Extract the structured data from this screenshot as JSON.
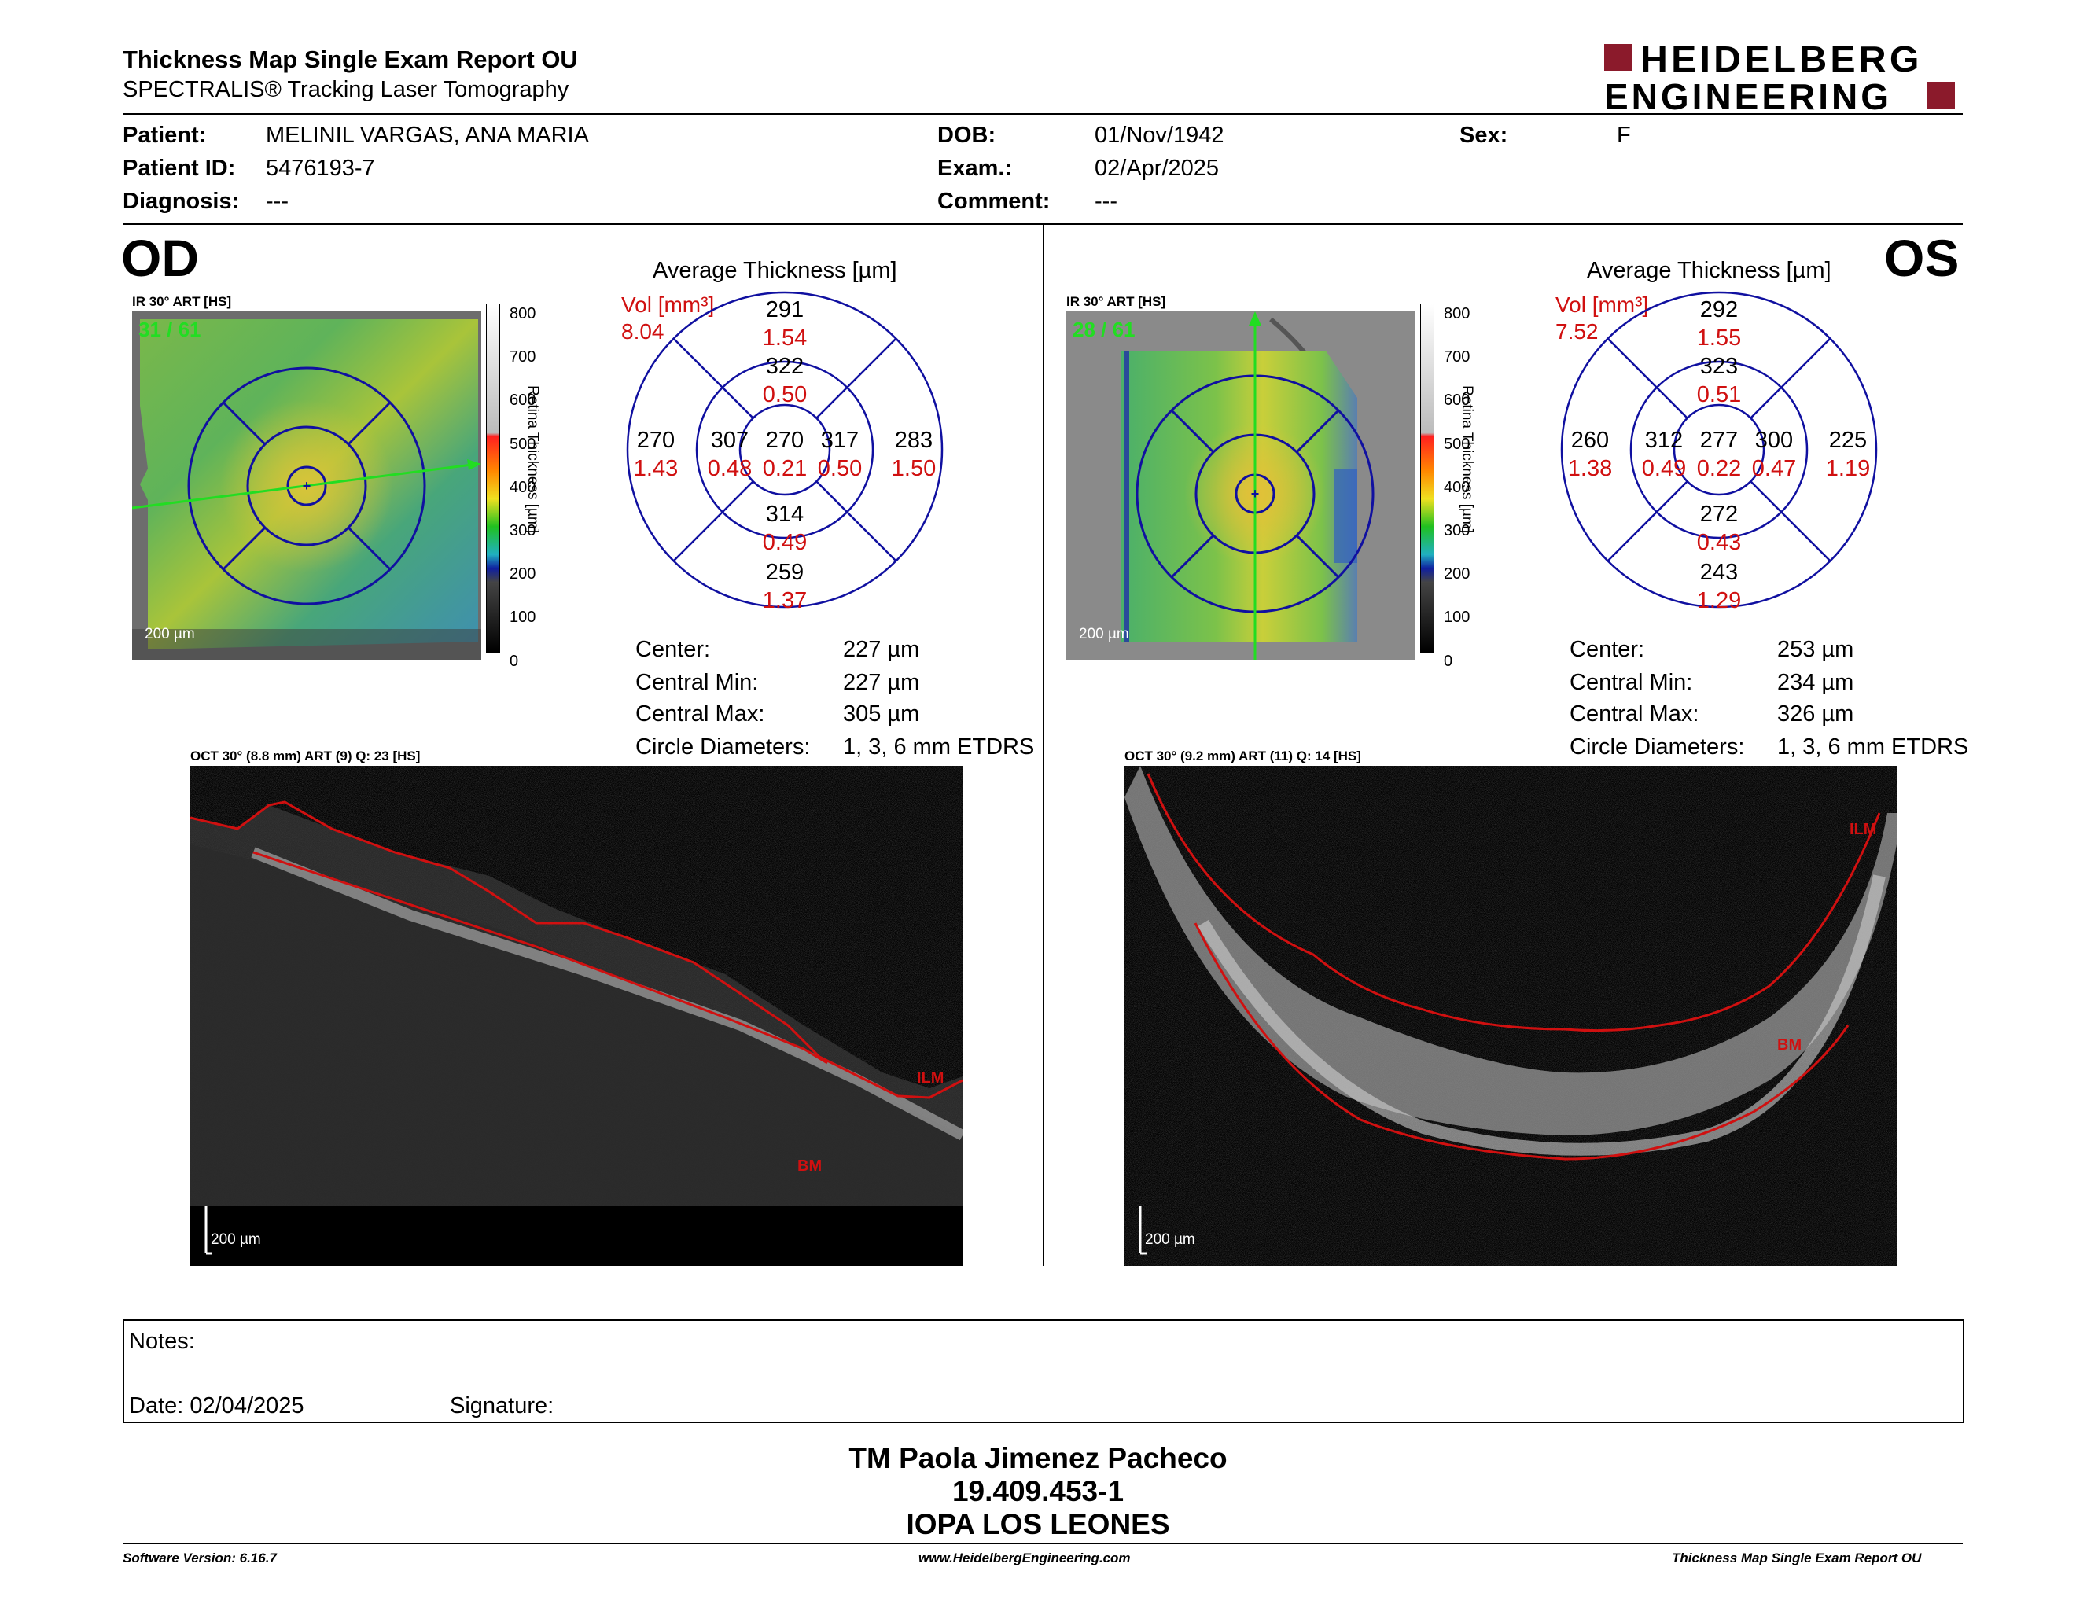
{
  "header": {
    "title": "Thickness Map Single Exam Report OU",
    "subtitle": "SPECTRALIS® Tracking Laser Tomography",
    "logo_line1": "HEIDELBERG",
    "logo_line2": "ENGINEERING",
    "brand_color": "#8b1a2b"
  },
  "patient": {
    "patient_label": "Patient:",
    "patient_value": "MELINIL VARGAS, ANA MARIA",
    "id_label": "Patient ID:",
    "id_value": "5476193-7",
    "diag_label": "Diagnosis:",
    "diag_value": "---",
    "dob_label": "DOB:",
    "dob_value": "01/Nov/1942",
    "exam_label": "Exam.:",
    "exam_value": "02/Apr/2025",
    "comment_label": "Comment:",
    "comment_value": "---",
    "sex_label": "Sex:",
    "sex_value": "F"
  },
  "od": {
    "eye": "OD",
    "ir_label": "IR 30° ART [HS]",
    "frame": "31 / 61",
    "scale": "200 µm",
    "avg_title": "Average Thickness [µm]",
    "vol_label": "Vol [mm³]",
    "vol_value": "8.04",
    "grid": {
      "center": {
        "t": "270",
        "v": "0.21"
      },
      "inner_sup": {
        "t": "322",
        "v": "0.50"
      },
      "inner_inf": {
        "t": "314",
        "v": "0.49"
      },
      "inner_temp": {
        "t": "307",
        "v": "0.48"
      },
      "inner_nasal": {
        "t": "317",
        "v": "0.50"
      },
      "outer_sup": {
        "t": "291",
        "v": "1.54"
      },
      "outer_inf": {
        "t": "259",
        "v": "1.37"
      },
      "outer_temp": {
        "t": "270",
        "v": "1.43"
      },
      "outer_nasal": {
        "t": "283",
        "v": "1.50"
      }
    },
    "stats": {
      "center_label": "Center:",
      "center_value": "227 µm",
      "min_label": "Central Min:",
      "min_value": "227 µm",
      "max_label": "Central Max:",
      "max_value": "305 µm",
      "circ_label": "Circle Diameters:",
      "circ_value": "1, 3, 6 mm ETDRS"
    },
    "oct_label": "OCT 30° (8.8 mm) ART (9) Q: 23 [HS]",
    "oct_scale": "200 µm",
    "ilm": "ILM",
    "bm": "BM"
  },
  "os": {
    "eye": "OS",
    "ir_label": "IR 30° ART [HS]",
    "frame": "28 / 61",
    "scale": "200 µm",
    "avg_title": "Average Thickness [µm]",
    "vol_label": "Vol [mm³]",
    "vol_value": "7.52",
    "grid": {
      "center": {
        "t": "277",
        "v": "0.22"
      },
      "inner_sup": {
        "t": "323",
        "v": "0.51"
      },
      "inner_inf": {
        "t": "272",
        "v": "0.43"
      },
      "inner_temp": {
        "t": "300",
        "v": "0.47"
      },
      "inner_nasal": {
        "t": "312",
        "v": "0.49"
      },
      "outer_sup": {
        "t": "292",
        "v": "1.55"
      },
      "outer_inf": {
        "t": "243",
        "v": "1.29"
      },
      "outer_temp": {
        "t": "225",
        "v": "1.19"
      },
      "outer_nasal": {
        "t": "260",
        "v": "1.38"
      }
    },
    "stats": {
      "center_label": "Center:",
      "center_value": "253 µm",
      "min_label": "Central Min:",
      "min_value": "234 µm",
      "max_label": "Central Max:",
      "max_value": "326 µm",
      "circ_label": "Circle Diameters:",
      "circ_value": "1, 3, 6 mm ETDRS"
    },
    "oct_label": "OCT 30° (9.2 mm) ART (11) Q: 14 [HS]",
    "oct_scale": "200 µm",
    "ilm": "ILM",
    "bm": "BM"
  },
  "colorbar": {
    "ticks": [
      "800",
      "700",
      "600",
      "500",
      "400",
      "300",
      "200",
      "100",
      "0"
    ],
    "title": "Retina  Thickness [µm]"
  },
  "notes": {
    "notes_label": "Notes:",
    "date_label": "Date: 02/04/2025",
    "signature_label": "Signature:"
  },
  "signer": {
    "name": "TM Paola Jimenez Pacheco",
    "rut": "19.409.453-1",
    "org": "IOPA LOS LEONES"
  },
  "footer": {
    "left": "Software Version: 6.16.7",
    "center": "www.HeidelbergEngineering.com",
    "right": "Thickness Map Single Exam Report OU"
  },
  "colors": {
    "value_red": "#d01010",
    "grid_blue": "#1010a0",
    "frame_green": "#22dd22"
  }
}
